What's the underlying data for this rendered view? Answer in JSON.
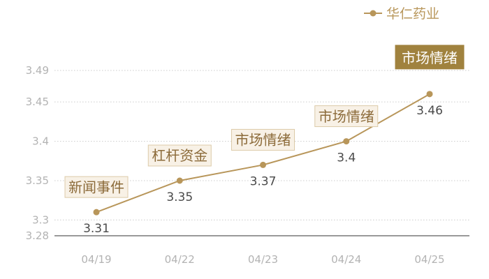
{
  "chart_data": {
    "type": "line",
    "categories": [
      "04/19",
      "04/22",
      "04/23",
      "04/24",
      "04/25"
    ],
    "series": [
      {
        "name": "华仁药业",
        "values": [
          3.31,
          3.35,
          3.37,
          3.4,
          3.46
        ],
        "value_labels": [
          "3.31",
          "3.35",
          "3.37",
          "3.4",
          "3.46"
        ],
        "color": "#b8965a"
      }
    ],
    "annotations": [
      {
        "category": "04/19",
        "text": "新闻事件",
        "style": "outline"
      },
      {
        "category": "04/22",
        "text": "杠杆资金",
        "style": "outline"
      },
      {
        "category": "04/23",
        "text": "市场情绪",
        "style": "outline"
      },
      {
        "category": "04/24",
        "text": "市场情绪",
        "style": "outline"
      },
      {
        "category": "04/25",
        "text": "市场情绪",
        "style": "filled"
      }
    ],
    "y_ticks": [
      3.28,
      3.3,
      3.35,
      3.4,
      3.45,
      3.49
    ],
    "ylim": [
      3.28,
      3.49
    ],
    "grid": "horizontal dotted",
    "legend_position": "top-right",
    "colors": {
      "line": "#b8965a",
      "axis_text": "#b3b3b3",
      "grid": "#cccccc",
      "value_text": "#4a4a4a",
      "note_fill": "#f8f1e6",
      "note_border": "#dccaa8",
      "note_text": "#8c6b3a",
      "note_filled_bg": "#a0823e",
      "note_filled_text": "#ffffff"
    }
  }
}
